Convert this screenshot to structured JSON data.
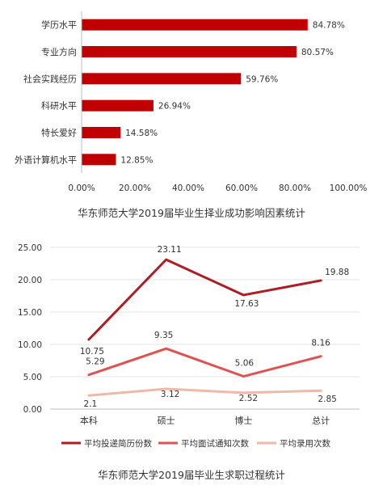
{
  "chart_data": [
    {
      "type": "bar",
      "orientation": "horizontal",
      "title": "华东师范大学2019届毕业生择业成功影响因素统计",
      "categories": [
        "学历水平",
        "专业方向",
        "社会实践经历",
        "科研水平",
        "特长爱好",
        "外语计算机水平"
      ],
      "values": [
        84.78,
        80.57,
        59.76,
        26.94,
        14.58,
        12.85
      ],
      "value_labels": [
        "84.78%",
        "80.57%",
        "59.76%",
        "26.94%",
        "14.58%",
        "12.85%"
      ],
      "xlim": [
        0,
        100
      ],
      "x_ticks": [
        0,
        20,
        40,
        60,
        80,
        100
      ],
      "x_tick_labels": [
        "0.00%",
        "20.00%",
        "40.00%",
        "60.00%",
        "80.00%",
        "100.00%"
      ],
      "bar_color": "#c00000",
      "grid": false
    },
    {
      "type": "line",
      "title": "华东师范大学2019届毕业生求职过程统计",
      "categories": [
        "本科",
        "硕士",
        "博士",
        "总计"
      ],
      "ylim": [
        0,
        25
      ],
      "y_ticks": [
        0,
        5,
        10,
        15,
        20,
        25
      ],
      "y_tick_labels": [
        "0.00",
        "5.00",
        "10.00",
        "15.00",
        "20.00",
        "25.00"
      ],
      "series": [
        {
          "name": "平均投递简历份数",
          "values": [
            10.75,
            23.11,
            17.63,
            19.88
          ],
          "labels": [
            "10.75",
            "23.11",
            "17.63",
            "19.88"
          ],
          "color": "#b01c23"
        },
        {
          "name": "平均面试通知次数",
          "values": [
            5.29,
            9.35,
            5.06,
            8.16
          ],
          "labels": [
            "5.29",
            "9.35",
            "5.06",
            "8.16"
          ],
          "color": "#e05252"
        },
        {
          "name": "平均录用次数",
          "values": [
            2.1,
            3.12,
            2.52,
            2.85
          ],
          "labels": [
            "2.1",
            "3.12",
            "2.52",
            "2.85"
          ],
          "color": "#f0b8a8"
        }
      ],
      "grid": true,
      "legend_position": "bottom"
    }
  ]
}
